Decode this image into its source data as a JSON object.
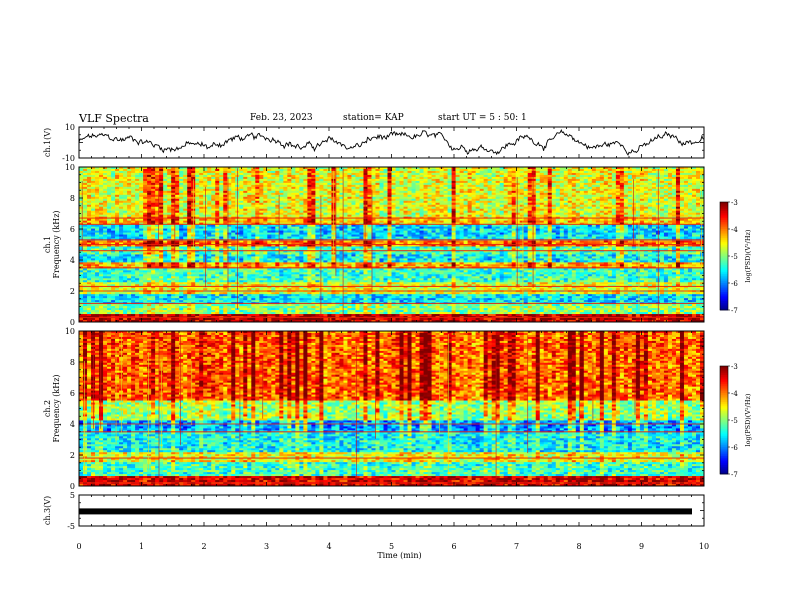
{
  "header": {
    "title": "VLF Spectra",
    "date": "Feb. 23, 2023",
    "station": "station= KAP",
    "start": "start  UT =  5 : 50: 1"
  },
  "chart_data": [
    {
      "type": "line",
      "name": "ch1-waveform",
      "ylabel": "ch.1(V)",
      "ylim": [
        -10,
        10
      ],
      "yticks": [
        "10",
        "-10"
      ],
      "xlim": [
        0,
        10
      ],
      "approx_range": [
        -8,
        8
      ]
    },
    {
      "type": "heatmap",
      "name": "ch1-spectrogram",
      "ylabel": "ch.1\nFrequency (kHz)",
      "ylim": [
        0,
        10
      ],
      "yticks": [
        "0",
        "2",
        "4",
        "6",
        "8",
        "10"
      ],
      "xlim": [
        0,
        10
      ],
      "bands": [
        {
          "from": 0.0,
          "to": 0.5,
          "level": -3.3
        },
        {
          "from": 0.5,
          "to": 1.2,
          "level": -5.0
        },
        {
          "from": 1.2,
          "to": 1.8,
          "level": -5.6
        },
        {
          "from": 1.8,
          "to": 2.6,
          "level": -4.6
        },
        {
          "from": 2.6,
          "to": 3.4,
          "level": -5.3
        },
        {
          "from": 3.4,
          "to": 3.8,
          "level": -4.2
        },
        {
          "from": 3.8,
          "to": 4.4,
          "level": -5.5
        },
        {
          "from": 4.4,
          "to": 4.9,
          "level": -5.2
        },
        {
          "from": 4.9,
          "to": 5.3,
          "level": -4.0
        },
        {
          "from": 5.3,
          "to": 6.3,
          "level": -5.6
        },
        {
          "from": 6.3,
          "to": 6.8,
          "level": -4.3
        },
        {
          "from": 6.8,
          "to": 10.0,
          "level": -4.6
        }
      ],
      "lines_khz": [
        0.3,
        1.2,
        2.0,
        2.3,
        3.5,
        4.6,
        5.0,
        5.3,
        6.3,
        6.7
      ],
      "colorbar": {
        "label": "log(PSD)(V²/Hz)",
        "range": [
          -7,
          -3
        ],
        "ticks": [
          "-3",
          "-4",
          "-5",
          "-6",
          "-7"
        ]
      }
    },
    {
      "type": "heatmap",
      "name": "ch2-spectrogram",
      "ylabel": "ch.2\nFrequency (kHz)",
      "ylim": [
        0,
        10
      ],
      "yticks": [
        "0",
        "2",
        "4",
        "6",
        "8",
        "10"
      ],
      "xlim": [
        0,
        10
      ],
      "bands": [
        {
          "from": 0.0,
          "to": 0.6,
          "level": -3.4
        },
        {
          "from": 0.6,
          "to": 1.6,
          "level": -5.3
        },
        {
          "from": 1.6,
          "to": 2.2,
          "level": -4.6
        },
        {
          "from": 2.2,
          "to": 3.4,
          "level": -5.5
        },
        {
          "from": 3.4,
          "to": 4.2,
          "level": -5.9
        },
        {
          "from": 4.2,
          "to": 5.5,
          "level": -4.9
        },
        {
          "from": 5.5,
          "to": 10.0,
          "level": -3.9
        }
      ],
      "lines_khz": [
        0.2,
        1.8,
        3.5,
        4.0
      ],
      "colorbar": {
        "label": "log(PSD)(V²/Hz)",
        "range": [
          -7,
          -3
        ],
        "ticks": [
          "-3",
          "-4",
          "-5",
          "-6",
          "-7"
        ]
      }
    },
    {
      "type": "line",
      "name": "ch3-waveform",
      "ylabel": "ch.3(V)",
      "ylim": [
        -5,
        5
      ],
      "yticks": [
        "5",
        "-5"
      ],
      "xlim": [
        0,
        10
      ],
      "xlabel": "Time (min)",
      "xticks": [
        "0",
        "1",
        "2",
        "3",
        "4",
        "5",
        "6",
        "7",
        "8",
        "9",
        "10"
      ],
      "approx_value": -0.3
    }
  ],
  "colors": {
    "low": "#0000aa",
    "mid": "#00dd00",
    "high": "#ff0000"
  }
}
